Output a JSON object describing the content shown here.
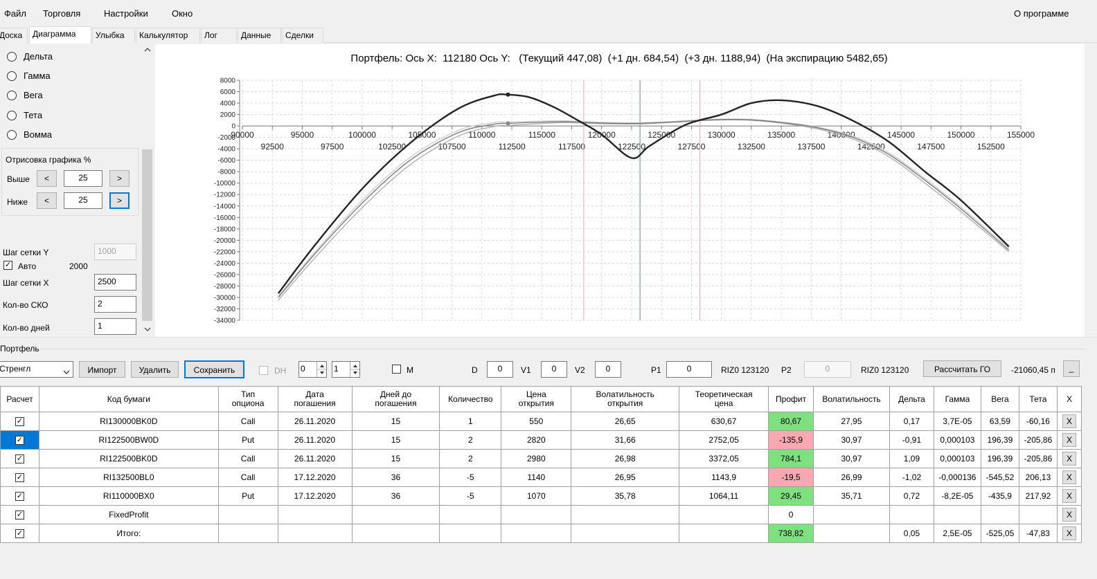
{
  "menu": {
    "items": [
      "Файл",
      "Торговля",
      "Настройки",
      "Окно"
    ],
    "about": "О программе"
  },
  "tabs": [
    "Доска",
    "Диаграмма",
    "Улыбка",
    "Калькулятор",
    "Лог",
    "Данные",
    "Сделки"
  ],
  "active_tab": "Диаграмма",
  "left_panel": {
    "radios": [
      "Дельта",
      "Гамма",
      "Вега",
      "Тета",
      "Вомма"
    ],
    "draw_group_title": "Отрисовка графика %",
    "above_label": "Выше",
    "above_value": "25",
    "below_label": "Ниже",
    "below_value": "25",
    "prev_glyph": "<",
    "next_glyph": ">",
    "grid_y_label": "Шаг сетки Y",
    "grid_y_value": "1000",
    "auto_label": "Авто",
    "auto_checked": true,
    "auto_value": "2000",
    "grid_x_label": "Шаг сетки X",
    "grid_x_value": "2500",
    "sko_label": "Кол-во СКО",
    "sko_value": "2",
    "days_label": "Кол-во дней",
    "days_value": "1"
  },
  "chart_data": {
    "type": "line",
    "title": "Портфель: Ось X:  112180 Ось Y:   (Текущий 447,08)  (+1 дн. 684,54)  (+3 дн. 1188,94)  (На экспирацию 5482,65)",
    "xlim": [
      90000,
      155000
    ],
    "ylim": [
      -34000,
      8000
    ],
    "x_ticks_upper": [
      90000,
      95000,
      100000,
      105000,
      110000,
      115000,
      120000,
      125000,
      130000,
      135000,
      140000,
      145000,
      150000,
      155000
    ],
    "x_ticks_lower": [
      92500,
      97500,
      102500,
      107500,
      112500,
      117500,
      122500,
      127500,
      132500,
      137500,
      142500,
      147500,
      152500
    ],
    "y_ticks": [
      8000,
      6000,
      4000,
      2000,
      0,
      -2000,
      -4000,
      -6000,
      -8000,
      -10000,
      -12000,
      -14000,
      -16000,
      -18000,
      -20000,
      -22000,
      -24000,
      -26000,
      -28000,
      -30000,
      -32000,
      -34000
    ],
    "grid": true,
    "vertical_markers": [
      {
        "x": 118500,
        "color": "#f4a6a6"
      },
      {
        "x": 123200,
        "color": "#6e7f92"
      },
      {
        "x": 128200,
        "color": "#f4a6a6"
      }
    ],
    "series": [
      {
        "color": "#222222",
        "x": [
          93000,
          96000,
          100000,
          104000,
          108000,
          111000,
          112180,
          114000,
          116000,
          118000,
          120000,
          122500,
          124000,
          127000,
          130000,
          132500,
          135000,
          138000,
          141000,
          144000,
          147000,
          150000,
          154000
        ],
        "y": [
          -29300,
          -21000,
          -11000,
          -3000,
          3000,
          5300,
          5480,
          5000,
          3300,
          1000,
          -1500,
          -5600,
          -3500,
          200,
          2000,
          4000,
          4500,
          3500,
          900,
          -2800,
          -8000,
          -13000,
          -21100
        ]
      },
      {
        "color": "#7a7a7a",
        "x": [
          93000,
          96000,
          100000,
          104000,
          108000,
          111000,
          112180,
          114000,
          117000,
          120000,
          123000,
          126000,
          129000,
          132000,
          135000,
          138000,
          141000,
          144000,
          147000,
          150000,
          154000
        ],
        "y": [
          -30000,
          -22500,
          -13500,
          -6000,
          -1200,
          300,
          450,
          600,
          750,
          500,
          450,
          700,
          1050,
          1100,
          600,
          -300,
          -2000,
          -5000,
          -9500,
          -14500,
          -21700
        ]
      },
      {
        "color": "#b0b0b0",
        "x": [
          93000,
          96000,
          100000,
          104000,
          108000,
          111000,
          112180,
          114000,
          117000,
          120000,
          123000,
          126000,
          129000,
          132000,
          135000,
          138000,
          141000,
          144000,
          147000,
          150000,
          154000
        ],
        "y": [
          -30500,
          -23200,
          -14300,
          -6800,
          -1800,
          -100,
          100,
          300,
          600,
          400,
          350,
          650,
          1000,
          1050,
          500,
          -500,
          -2300,
          -5400,
          -10000,
          -15000,
          -22000
        ]
      },
      {
        "color": "#d0d0d0",
        "x": [
          93000,
          96000,
          100000,
          104000,
          108000,
          111000,
          112180,
          114000,
          117000,
          120000,
          123000,
          126000,
          129000,
          132000,
          135000,
          138000,
          141000,
          144000,
          147000,
          150000,
          154000
        ],
        "y": [
          -29800,
          -22200,
          -13000,
          -5500,
          -800,
          600,
          700,
          800,
          900,
          650,
          550,
          800,
          1150,
          1200,
          700,
          -200,
          -1800,
          -4700,
          -9200,
          -14200,
          -21400
        ]
      }
    ],
    "points": [
      {
        "x": 112180,
        "y": 5482.65,
        "color": "#222222"
      },
      {
        "x": 112180,
        "y": 447.08,
        "color": "#888888"
      }
    ]
  },
  "portfolio": {
    "group_title": "Портфель",
    "strategy_value": "Стренгл",
    "import_label": "Импорт",
    "delete_label": "Удалить",
    "save_label": "Сохранить",
    "dh_label": "DH",
    "spin1_value": "0",
    "spin2_value": "1",
    "m_label": "M",
    "d_label": "D",
    "d_value": "0",
    "v1_label": "V1",
    "v1_value": "0",
    "v2_label": "V2",
    "v2_value": "0",
    "p1_label": "P1",
    "p1_value": "0",
    "riz1_text": "RIZ0 123120",
    "p2_label": "P2",
    "p2_value": "0",
    "riz2_text": "RIZ0 123120",
    "calc_go_label": "Рассчитать ГО",
    "go_value": "-21060,45 п",
    "extra_button_label": "_"
  },
  "table": {
    "headers": [
      "Расчет",
      "Код бумаги",
      "Тип\nопциона",
      "Дата\nпогашения",
      "Дней до\nпогашения",
      "Количество",
      "Цена\nоткрытия",
      "Волатильность\nоткрытия",
      "Теоретическая\nцена",
      "Профит",
      "Волатильность",
      "Дельта",
      "Гамма",
      "Вега",
      "Тета",
      "X"
    ],
    "rows": [
      {
        "checked": true,
        "selected": false,
        "cells": [
          "RI130000BK0D",
          "Call",
          "26.11.2020",
          "15",
          "1",
          "550",
          "26,65",
          "630,67",
          "80,67",
          "27,95",
          "0,17",
          "3,7E-05",
          "63,59",
          "-60,16"
        ],
        "profit_color": "green"
      },
      {
        "checked": true,
        "selected": true,
        "cells": [
          "RI122500BW0D",
          "Put",
          "26.11.2020",
          "15",
          "2",
          "2820",
          "31,66",
          "2752,05",
          "-135,9",
          "30,97",
          "-0,91",
          "0,000103",
          "196,39",
          "-205,86"
        ],
        "profit_color": "pink"
      },
      {
        "checked": true,
        "selected": false,
        "cells": [
          "RI122500BK0D",
          "Call",
          "26.11.2020",
          "15",
          "2",
          "2980",
          "26,98",
          "3372,05",
          "784,1",
          "30,97",
          "1,09",
          "0,000103",
          "196,39",
          "-205,86"
        ],
        "profit_color": "green"
      },
      {
        "checked": true,
        "selected": false,
        "cells": [
          "RI132500BL0",
          "Call",
          "17.12.2020",
          "36",
          "-5",
          "1140",
          "26,95",
          "1143,9",
          "-19,5",
          "26,99",
          "-1,02",
          "-0,000136",
          "-545,52",
          "206,13"
        ],
        "profit_color": "pink"
      },
      {
        "checked": true,
        "selected": false,
        "cells": [
          "RI110000BX0",
          "Put",
          "17.12.2020",
          "36",
          "-5",
          "1070",
          "35,78",
          "1064,11",
          "29,45",
          "35,71",
          "0,72",
          "-8,2E-05",
          "-435,9",
          "217,92"
        ],
        "profit_color": "green"
      },
      {
        "checked": true,
        "selected": false,
        "cells": [
          "FixedProfit",
          "",
          "",
          "",
          "",
          "",
          "",
          "",
          "0",
          "",
          "",
          "",
          "",
          ""
        ],
        "profit_color": "none"
      },
      {
        "checked": true,
        "selected": false,
        "cells": [
          "Итого:",
          "",
          "",
          "",
          "",
          "",
          "",
          "",
          "738,82",
          "",
          "0,05",
          "2,5E-05",
          "-525,05",
          "-47,83"
        ],
        "profit_color": "green"
      }
    ],
    "delete_glyph": "X",
    "check_glyph": "✓"
  }
}
